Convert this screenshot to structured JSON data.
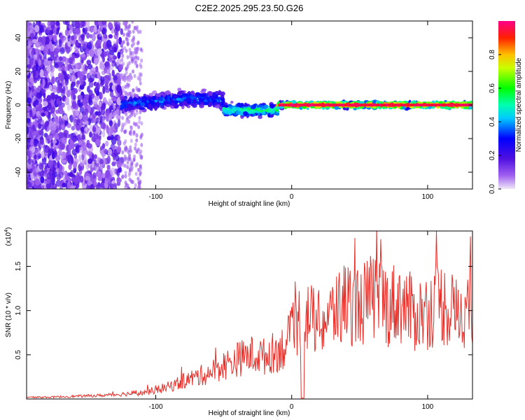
{
  "title": "C2E2.2025.295.23.50.G26",
  "chart_data": [
    {
      "type": "heatmap",
      "xlabel": "Height of straight line (km)",
      "ylabel": "Frequency (Hz)",
      "xlim": [
        -195,
        133
      ],
      "ylim": [
        -50,
        50
      ],
      "xticks": [
        -100,
        0,
        100
      ],
      "xtick_labels": [
        "-100",
        "0",
        "100"
      ],
      "yticks": [
        -40,
        -20,
        0,
        20,
        40
      ],
      "ytick_labels": [
        "-40",
        "-20",
        "0",
        "20",
        "40"
      ],
      "colorbar": {
        "label": "Normalized spectral amplitude",
        "range": [
          0.0,
          1.0
        ],
        "ticks": [
          0.0,
          0.2,
          0.4,
          0.6,
          0.8
        ],
        "tick_labels": [
          "0.0",
          "0.2",
          "0.4",
          "0.6",
          "0.8"
        ]
      },
      "regions": [
        {
          "x_range": [
            -195,
            -125
          ],
          "description": "scattered noise",
          "freq_range": [
            -50,
            50
          ],
          "amplitude": 0.15
        },
        {
          "x_range": [
            -125,
            -50
          ],
          "description": "signal band",
          "freq_center": 2,
          "freq_halfwidth": 4,
          "amplitude": 0.35
        },
        {
          "x_range": [
            -50,
            -10
          ],
          "description": "signal band",
          "freq_center": -3,
          "freq_halfwidth": 3,
          "amplitude": 0.55
        },
        {
          "x_range": [
            -10,
            133
          ],
          "description": "tonal line",
          "freq_center": 0,
          "freq_halfwidth": 1.5,
          "amplitude": 0.95
        }
      ]
    },
    {
      "type": "line",
      "xlabel": "Height of straight line (km)",
      "ylabel": "SNR (10 * v/v)",
      "y_multiplier": "(x10",
      "y_multiplier_exp": "4",
      "xlim": [
        -195,
        133
      ],
      "ylim": [
        0,
        1.9
      ],
      "xticks": [
        -100,
        0,
        100
      ],
      "xtick_labels": [
        "-100",
        "0",
        "100"
      ],
      "yticks": [
        0.5,
        1.0,
        1.5
      ],
      "ytick_labels": [
        "0.5",
        "1.0",
        "1.5"
      ],
      "series": [
        {
          "name": "SNR",
          "color": "#e8302a",
          "x": [
            -195,
            -180,
            -160,
            -140,
            -130,
            -120,
            -110,
            -100,
            -90,
            -80,
            -70,
            -60,
            -50,
            -40,
            -30,
            -20,
            -10,
            -5,
            0,
            5,
            10,
            15,
            20,
            30,
            40,
            50,
            60,
            65,
            70,
            80,
            90,
            100,
            110,
            120,
            130,
            133
          ],
          "y": [
            0.02,
            0.02,
            0.03,
            0.04,
            0.05,
            0.06,
            0.07,
            0.1,
            0.14,
            0.2,
            0.25,
            0.3,
            0.38,
            0.45,
            0.5,
            0.48,
            0.55,
            0.6,
            0.72,
            0.9,
            0.95,
            0.9,
            0.85,
            0.95,
            1.1,
            1.05,
            1.15,
            1.2,
            1.05,
            1.1,
            0.95,
            1.0,
            1.1,
            0.95,
            1.05,
            1.0
          ]
        }
      ]
    }
  ]
}
